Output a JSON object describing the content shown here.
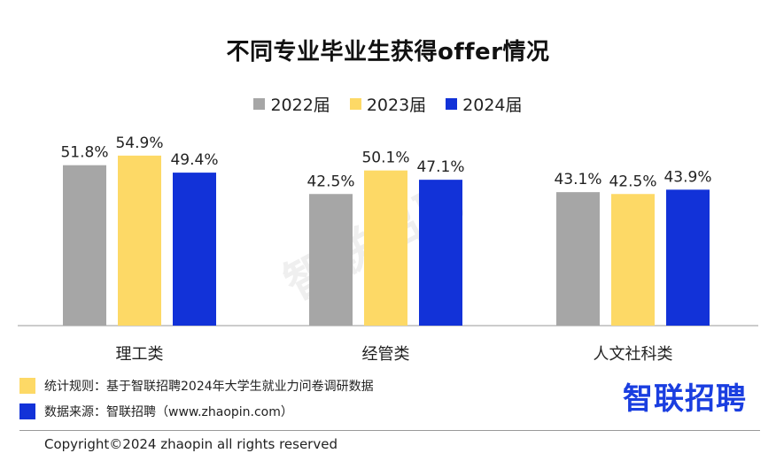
{
  "title": "不同专业毕业生获得offer情况",
  "legend": [
    {
      "label": "2022届",
      "color": "#a6a6a6"
    },
    {
      "label": "2023届",
      "color": "#fdd966"
    },
    {
      "label": "2024届",
      "color": "#1232d8"
    }
  ],
  "chart_data": {
    "type": "bar",
    "title": "不同专业毕业生获得offer情况",
    "categories": [
      "理工类",
      "经管类",
      "人文社科类"
    ],
    "series": [
      {
        "name": "2022届",
        "values": [
          51.8,
          42.5,
          43.1
        ],
        "labels": [
          "51.8%",
          "42.5%",
          "43.1%"
        ],
        "color": "#a6a6a6"
      },
      {
        "name": "2023届",
        "values": [
          54.9,
          50.1,
          42.5
        ],
        "labels": [
          "54.9%",
          "50.1%",
          "42.5%"
        ],
        "color": "#fdd966"
      },
      {
        "name": "2024届",
        "values": [
          49.4,
          47.1,
          43.9
        ],
        "labels": [
          "49.4%",
          "47.1%",
          "43.9%"
        ],
        "color": "#1232d8"
      }
    ],
    "unit": "%",
    "legend_position": "top-center",
    "grid": false
  },
  "watermark": "智联招聘",
  "notes": [
    {
      "text": "统计规则：基于智联招聘2024年大学生就业力问卷调研数据",
      "color": "#fdd966"
    },
    {
      "text": "数据来源：智联招聘（www.zhaopin.com）",
      "color": "#1232d8"
    }
  ],
  "logo": "智联招聘",
  "copyright": "Copyright©2024 zhaopin all rights reserved"
}
